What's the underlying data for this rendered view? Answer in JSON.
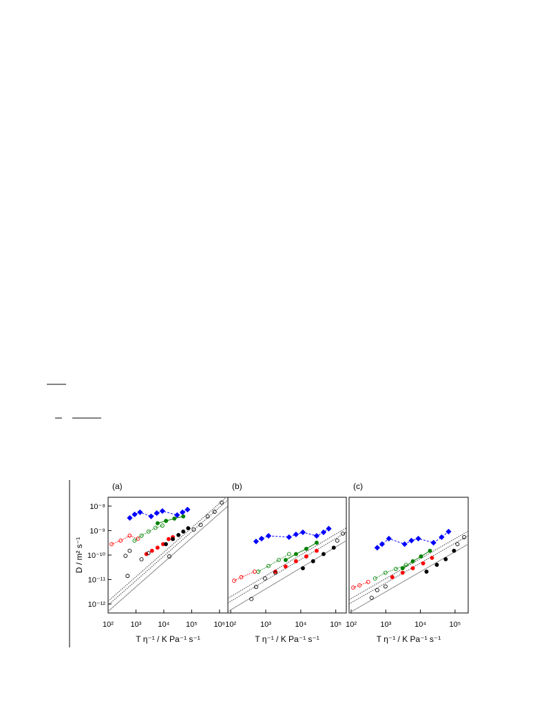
{
  "chart_data": [
    {
      "type": "scatter",
      "title": "(a)",
      "xlabel": "T η⁻¹ / K Pa⁻¹ s⁻¹",
      "ylabel": "D / m² s⁻¹",
      "xscale": "log",
      "yscale": "log",
      "xlim": [
        100,
        2000000
      ],
      "ylim": [
        4.3e-13,
        2.3e-08
      ],
      "xticks": [
        {
          "value": 100,
          "label": "10²"
        },
        {
          "value": 1000,
          "label": "10³"
        },
        {
          "value": 10000,
          "label": "10⁴"
        },
        {
          "value": 100000,
          "label": "10⁵"
        },
        {
          "value": 1000000,
          "label": "10⁶"
        }
      ],
      "yticks": [
        {
          "value": 1e-08,
          "label": "10⁻⁸"
        },
        {
          "value": 1e-09,
          "label": "10⁻⁹"
        },
        {
          "value": 1e-10,
          "label": "10⁻¹⁰"
        },
        {
          "value": 1e-11,
          "label": "10⁻¹¹"
        },
        {
          "value": 1e-12,
          "label": "10⁻¹²"
        }
      ],
      "series": [
        {
          "color": "#999999",
          "line": "solid",
          "x": [
            100,
            2000000
          ],
          "values": [
            5e-13,
            1e-08
          ]
        },
        {
          "color": "#555555",
          "line": "dotted",
          "x": [
            100,
            2000000
          ],
          "values": [
            9e-13,
            1.8e-08
          ]
        },
        {
          "color": "#555555",
          "line": "dotted",
          "x": [
            100,
            2000000
          ],
          "values": [
            1.3e-12,
            2.6e-08
          ]
        },
        {
          "color": "#0000ff",
          "marker": "diamond",
          "filled": true,
          "line": "dashed",
          "x": [
            600,
            900,
            1400,
            3500,
            5600,
            8900,
            30000,
            47000,
            71000
          ],
          "values": [
            3.3e-09,
            4.6e-09,
            5.6e-09,
            3.8e-09,
            5.2e-09,
            6.3e-09,
            4.3e-09,
            5.6e-09,
            7.2e-09
          ]
        },
        {
          "color": "#008000",
          "marker": "circle",
          "filled": true,
          "line": "solid",
          "x": [
            6000,
            12000,
            24000,
            50000
          ],
          "values": [
            2e-09,
            2.5e-09,
            3.1e-09,
            3.8e-09
          ]
        },
        {
          "color": "#008000",
          "marker": "circle",
          "filled": false,
          "line": "dotted",
          "x": [
            890,
            1580,
            2820,
            5010,
            8910
          ],
          "values": [
            3.9e-10,
            6.2e-10,
            9.1e-10,
            1.3e-09,
            1.6e-09
          ]
        },
        {
          "color": "#ff0000",
          "marker": "circle",
          "filled": false,
          "line": "dotted",
          "x": [
            133,
            282,
            596,
            1190
          ],
          "values": [
            2.8e-10,
            3.9e-10,
            6.2e-10,
            4.7e-10
          ]
        },
        {
          "color": "#ff0000",
          "marker": "circle",
          "filled": true,
          "x": [
            2370,
            3760,
            5960,
            9440,
            14900,
            21100
          ],
          "values": [
            1.1e-10,
            1.5e-10,
            2e-10,
            2.8e-10,
            4.5e-10,
            5.4e-10
          ]
        },
        {
          "color": "#000000",
          "marker": "circle",
          "filled": true,
          "x": [
            11900,
            21100,
            33500,
            50100,
            75000
          ],
          "values": [
            2.8e-10,
            4.5e-10,
            6.6e-10,
            9.1e-10,
            1.25e-09
          ]
        },
        {
          "color": "#000000",
          "marker": "circle",
          "filled": false,
          "x": [
            422,
            596,
            500,
            1580,
            2820,
            15800,
            119000,
            211000,
            376000,
            668000,
            1190000
          ],
          "values": [
            9.3e-11,
            1.5e-10,
            1.4e-11,
            6.7e-11,
            1.2e-10,
            8.8e-11,
            1.1e-09,
            1.7e-09,
            3.8e-09,
            5.9e-09,
            1.4e-08
          ]
        }
      ]
    },
    {
      "type": "scatter",
      "title": "(b)",
      "xlabel": "T η⁻¹ / K Pa⁻¹ s⁻¹",
      "xscale": "log",
      "yscale": "log",
      "xlim": [
        83,
        200000
      ],
      "ylim": [
        4.3e-13,
        2.3e-08
      ],
      "xticks": [
        {
          "value": 100,
          "label": "10²"
        },
        {
          "value": 1000,
          "label": "10³"
        },
        {
          "value": 10000,
          "label": "10⁴"
        },
        {
          "value": 100000,
          "label": "10⁵"
        }
      ],
      "series": [
        {
          "color": "#999999",
          "line": "solid",
          "x": [
            83,
            200000
          ],
          "values": [
            4.9e-13,
            3.9e-10
          ]
        },
        {
          "color": "#555555",
          "line": "dotted",
          "x": [
            83,
            200000
          ],
          "values": [
            1.1e-12,
            8.6e-10
          ]
        },
        {
          "color": "#555555",
          "line": "dotted",
          "x": [
            83,
            200000
          ],
          "values": [
            1.7e-12,
            1.3e-09
          ]
        },
        {
          "color": "#0000ff",
          "marker": "diamond",
          "filled": true,
          "line": "dashed",
          "x": [
            530,
            760,
            1200,
            4630,
            7310,
            11500,
            28400,
            44700,
            63000
          ],
          "values": [
            3.6e-10,
            4.7e-10,
            6.1e-10,
            5.4e-10,
            7e-10,
            8.5e-10,
            6.1e-10,
            8.5e-10,
            1.2e-09
          ]
        },
        {
          "color": "#008000",
          "marker": "circle",
          "filled": true,
          "line": "solid",
          "x": [
            3700,
            7300,
            14400,
            28400
          ],
          "values": [
            6.3e-11,
            1.1e-10,
            1.8e-10,
            3.2e-10
          ]
        },
        {
          "color": "#008000",
          "marker": "circle",
          "filled": false,
          "line": "dotted",
          "x": [
            610,
            1200,
            2350,
            4630
          ],
          "values": [
            2.1e-11,
            3.6e-11,
            6.3e-11,
            1.1e-10
          ]
        },
        {
          "color": "#ff0000",
          "marker": "circle",
          "filled": false,
          "line": "dotted",
          "x": [
            125,
            200,
            480
          ],
          "values": [
            9e-12,
            1.25e-11,
            2.1e-11
          ]
        },
        {
          "color": "#ff0000",
          "marker": "circle",
          "filled": true,
          "x": [
            1880,
            3700,
            7300,
            14400,
            28400
          ],
          "values": [
            2.1e-11,
            3.4e-11,
            5.6e-11,
            8.8e-11,
            1.5e-10
          ]
        },
        {
          "color": "#000000",
          "marker": "circle",
          "filled": true,
          "x": [
            11500,
            22500,
            44700,
            87500
          ],
          "values": [
            2.9e-11,
            5.6e-11,
            1.1e-10,
            2e-10
          ]
        },
        {
          "color": "#000000",
          "marker": "circle",
          "filled": false,
          "x": [
            390,
            530,
            950,
            1880,
            110000,
            160000
          ],
          "values": [
            1.6e-12,
            5e-12,
            1.1e-11,
            1.9e-11,
            3.9e-10,
            7.5e-10
          ]
        }
      ]
    },
    {
      "type": "scatter",
      "title": "(c)",
      "xlabel": "T η⁻¹ / K Pa⁻¹ s⁻¹",
      "xscale": "log",
      "yscale": "log",
      "xlim": [
        87,
        240000
      ],
      "ylim": [
        4.3e-13,
        2.3e-08
      ],
      "xticks": [
        {
          "value": 100,
          "label": "10²"
        },
        {
          "value": 1000,
          "label": "10³"
        },
        {
          "value": 10000,
          "label": "10⁴"
        },
        {
          "value": 100000,
          "label": "10⁵"
        }
      ],
      "series": [
        {
          "color": "#999999",
          "line": "solid",
          "x": [
            87,
            240000
          ],
          "values": [
            4.3e-13,
            2.8e-10
          ]
        },
        {
          "color": "#555555",
          "line": "dotted",
          "x": [
            87,
            240000
          ],
          "values": [
            1e-12,
            6.2e-10
          ]
        },
        {
          "color": "#555555",
          "line": "dotted",
          "x": [
            87,
            240000
          ],
          "values": [
            1.5e-12,
            9.5e-10
          ]
        },
        {
          "color": "#0000ff",
          "marker": "diamond",
          "filled": true,
          "line": "dashed",
          "x": [
            565,
            780,
            1230,
            3500,
            5500,
            8700,
            23900,
            41000,
            65000
          ],
          "values": [
            2e-10,
            2.8e-10,
            4.7e-10,
            2.8e-10,
            3.9e-10,
            4.7e-10,
            3.2e-10,
            5.4e-10,
            9.1e-10
          ]
        },
        {
          "color": "#008000",
          "marker": "circle",
          "filled": true,
          "line": "solid",
          "x": [
            3060,
            6040,
            10400,
            18900
          ],
          "values": [
            2.9e-11,
            5.6e-11,
            8.8e-11,
            1.5e-10
          ]
        },
        {
          "color": "#008000",
          "marker": "circle",
          "filled": false,
          "line": "dotted",
          "x": [
            490,
            980,
            1940,
            3840
          ],
          "values": [
            1.1e-11,
            1.9e-11,
            2.7e-11,
            4e-11
          ]
        },
        {
          "color": "#ff0000",
          "marker": "circle",
          "filled": false,
          "line": "dotted",
          "x": [
            115,
            175,
            310
          ],
          "values": [
            4.7e-12,
            5.8e-12,
            8e-12
          ]
        },
        {
          "color": "#ff0000",
          "marker": "circle",
          "filled": true,
          "x": [
            1540,
            3060,
            6040,
            12000,
            21600
          ],
          "values": [
            1.25e-11,
            1.9e-11,
            2.9e-11,
            4.6e-11,
            7.7e-11
          ]
        },
        {
          "color": "#000000",
          "marker": "circle",
          "filled": true,
          "x": [
            15000,
            29800,
            53700,
            93500
          ],
          "values": [
            2.1e-11,
            4e-11,
            6.8e-11,
            1.5e-10
          ]
        },
        {
          "color": "#000000",
          "marker": "circle",
          "filled": false,
          "x": [
            390,
            565,
            980,
            117000,
            184000
          ],
          "values": [
            1.8e-12,
            3.7e-12,
            5.2e-12,
            2.8e-10,
            5.4e-10
          ]
        }
      ]
    }
  ]
}
